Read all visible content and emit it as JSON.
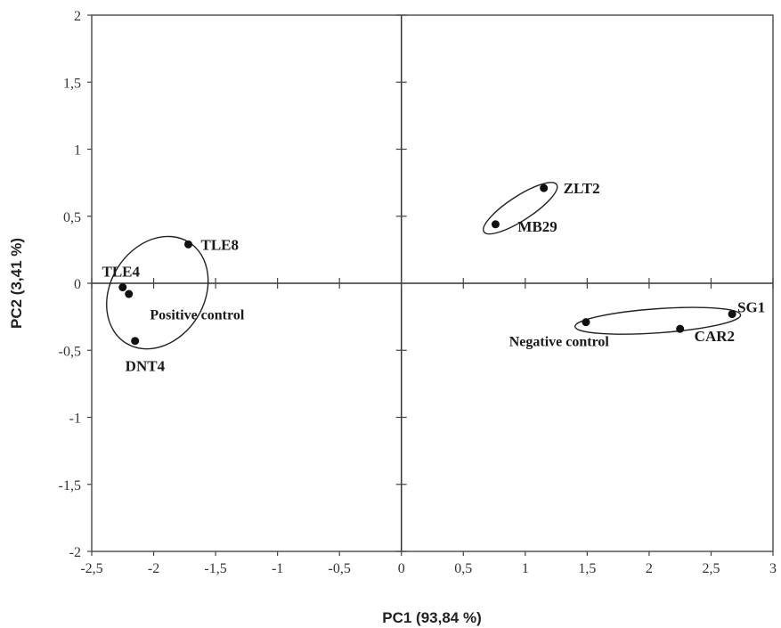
{
  "chart_data": {
    "type": "scatter",
    "xlabel": "PC1 (93,84 %)",
    "ylabel": "PC2 (3,41 %)",
    "xlim": [
      -2.5,
      3
    ],
    "ylim": [
      -2,
      2
    ],
    "x_ticks": [
      -2.5,
      -2,
      -1.5,
      -1,
      -0.5,
      0,
      0.5,
      1,
      1.5,
      2,
      2.5,
      3
    ],
    "x_tick_labels": [
      "-2,5",
      "-2",
      "-1,5",
      "-1",
      "-0,5",
      "0",
      "0,5",
      "1",
      "1,5",
      "2",
      "2,5",
      "3"
    ],
    "y_ticks": [
      -2,
      -1.5,
      -1,
      -0.5,
      0,
      0.5,
      1,
      1.5,
      2
    ],
    "y_tick_labels": [
      "-2",
      "-1,5",
      "-1",
      "-0,5",
      "0",
      "0,5",
      "1",
      "1,5",
      "2"
    ],
    "grid": false,
    "legend": "none",
    "points": [
      {
        "label": "TLE4",
        "x": -2.25,
        "y": -0.03
      },
      {
        "label": "",
        "x": -2.2,
        "y": -0.08
      },
      {
        "label": "TLE8",
        "x": -1.72,
        "y": 0.29
      },
      {
        "label": "DNT4",
        "x": -2.15,
        "y": -0.43
      },
      {
        "label": "ZLT2",
        "x": 1.15,
        "y": 0.71
      },
      {
        "label": "MB29",
        "x": 0.76,
        "y": 0.44
      },
      {
        "label": "",
        "x": 1.49,
        "y": -0.29
      },
      {
        "label": "CAR2",
        "x": 2.25,
        "y": -0.34
      },
      {
        "label": "SG1",
        "x": 2.67,
        "y": -0.23
      }
    ],
    "groups": [
      {
        "name": "Positive control",
        "cx": -1.97,
        "cy": -0.07,
        "rx": 0.48,
        "ry": 0.35,
        "angle_deg": -58
      },
      {
        "name": "",
        "cx": 0.96,
        "cy": 0.56,
        "rx": 0.35,
        "ry": 0.09,
        "angle_deg": -33
      },
      {
        "name": "Negative control",
        "cx": 2.07,
        "cy": -0.28,
        "rx": 0.67,
        "ry": 0.09,
        "angle_deg": -4
      }
    ]
  }
}
